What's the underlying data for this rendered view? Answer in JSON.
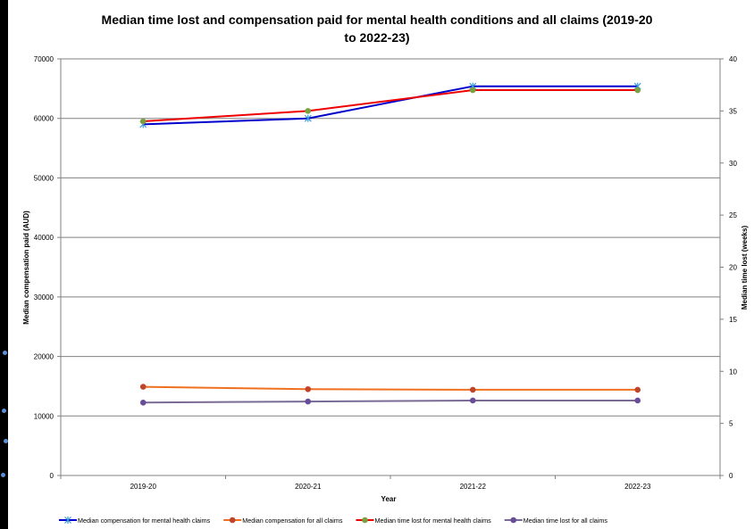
{
  "chart_data": {
    "type": "line",
    "title_line1": "Median time lost and compensation paid for mental health conditions and all claims (2019-20",
    "title_line2": "to 2022-23)",
    "xlabel": "Year",
    "ylabel_left": "Median compensation paid (AUD)",
    "ylabel_right": "Median time lost (weeks)",
    "categories": [
      "2019-20",
      "2020-21",
      "2021-22",
      "2022-23"
    ],
    "y_left": {
      "lim": [
        0,
        70000
      ],
      "ticks": [
        0,
        10000,
        20000,
        30000,
        40000,
        50000,
        60000,
        70000
      ]
    },
    "y_right": {
      "lim": [
        0,
        40
      ],
      "ticks": [
        0,
        5,
        10,
        15,
        20,
        25,
        30,
        35,
        40
      ]
    },
    "grid": true,
    "legend_position": "bottom",
    "series": [
      {
        "name": "Median compensation for mental health claims",
        "axis": "left",
        "color": "#0000cc",
        "marker": "star",
        "marker_color": "#3a9ad9",
        "values": [
          59000,
          60000,
          65400,
          65400
        ]
      },
      {
        "name": "Median compensation for all claims",
        "axis": "left",
        "color": "#f07020",
        "marker": "circle",
        "marker_color": "#c0442a",
        "values": [
          14900,
          14500,
          14400,
          14400
        ]
      },
      {
        "name": "Median time lost for mental health claims",
        "axis": "right",
        "color": "#ee0000",
        "marker": "circle",
        "marker_color": "#7aa040",
        "values": [
          34,
          35,
          37,
          37
        ]
      },
      {
        "name": "Median time lost for all claims",
        "axis": "right",
        "color": "#7a6a96",
        "marker": "circle",
        "marker_color": "#6a4d99",
        "values": [
          7,
          7.1,
          7.2,
          7.2
        ]
      }
    ]
  }
}
